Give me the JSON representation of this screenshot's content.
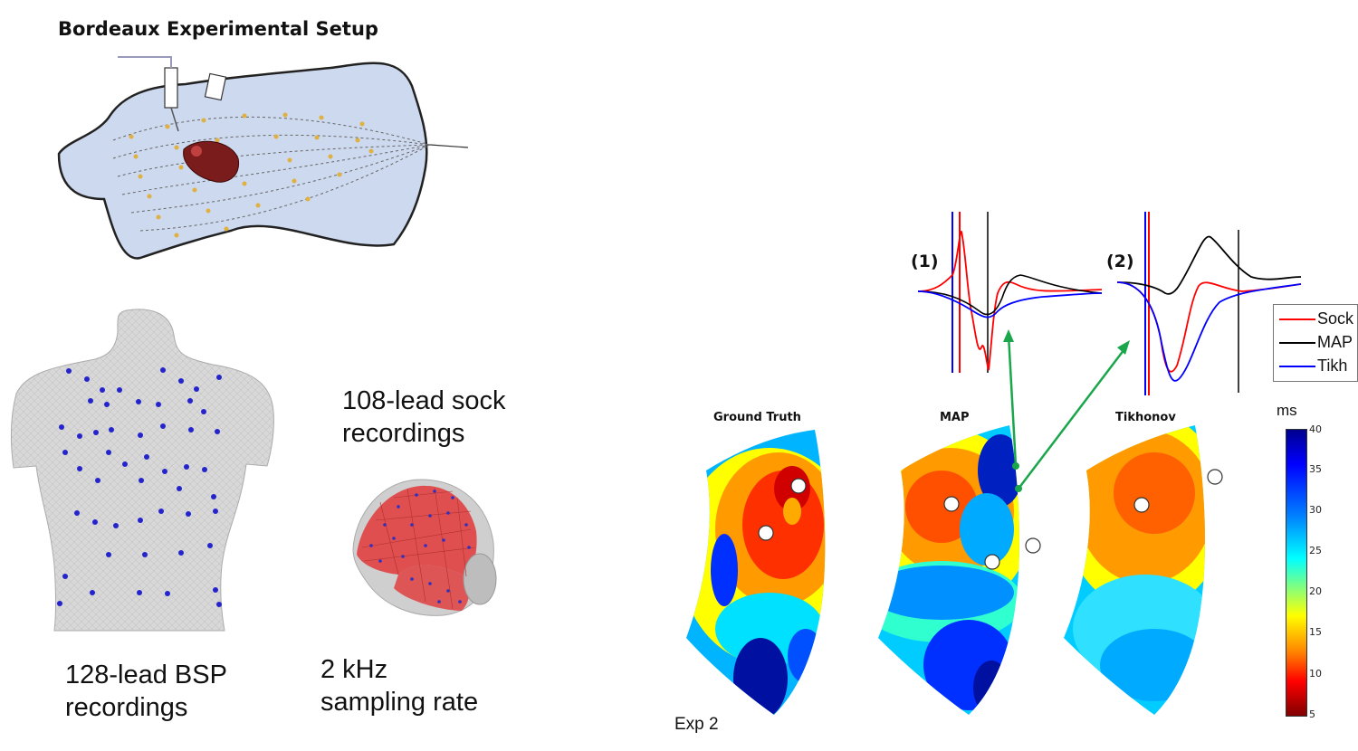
{
  "title": "Bordeaux Experimental Setup",
  "captions": {
    "bsp": [
      "128-lead BSP",
      "recordings"
    ],
    "sock": [
      "108-lead sock",
      "recordings"
    ],
    "rate": [
      "2 kHz",
      "sampling rate"
    ]
  },
  "maps": [
    "Ground Truth",
    "MAP",
    "Tikhonov"
  ],
  "trace_labels": [
    "(1)",
    "(2)"
  ],
  "legend": [
    {
      "name": "Sock",
      "color": "#ff0000"
    },
    {
      "name": "MAP",
      "color": "#000000"
    },
    {
      "name": "Tikh",
      "color": "#0000ff"
    }
  ],
  "colorbar": {
    "unit": "ms",
    "ticks": [
      "40",
      "35",
      "30",
      "25",
      "20",
      "15",
      "10",
      "5"
    ]
  },
  "footer": "Exp 2"
}
